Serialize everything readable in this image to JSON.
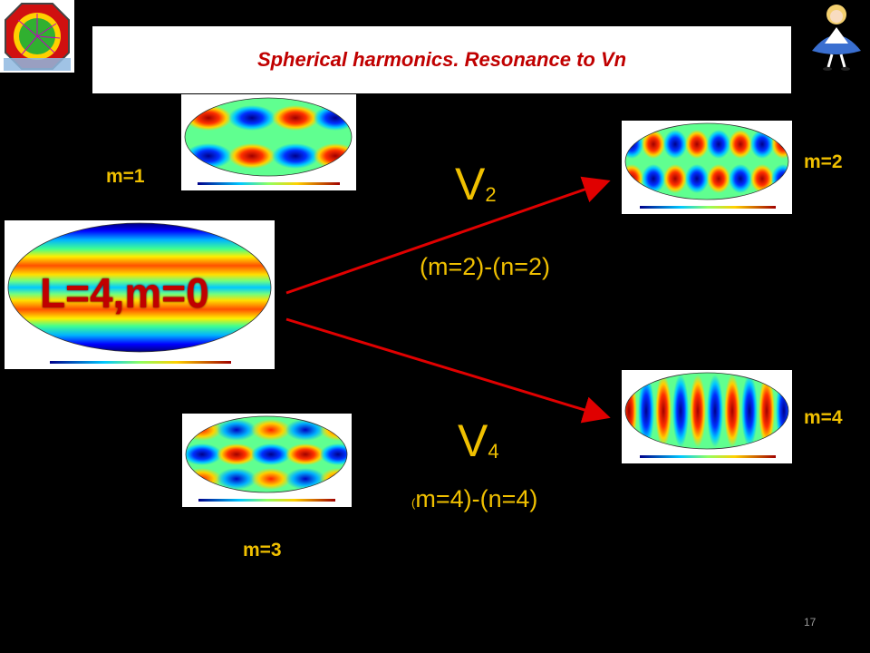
{
  "slide": {
    "title": "Spherical harmonics. Resonance  to Vn",
    "page_number": "17"
  },
  "central_map": {
    "label": "L=4,m=0",
    "scale_min": "-0.34",
    "scale_max": "+0.80"
  },
  "maps": {
    "m1": {
      "label": "m=1",
      "scale_min": "-0.66",
      "scale_max": "+0.66"
    },
    "m2": {
      "label": "m=2",
      "scale_min": "-6.25e-01",
      "scale_max": "+6.25e-01"
    },
    "m3": {
      "label": "m=3",
      "scale_min": "-6.45e-01",
      "scale_max": "+6.45e-01"
    },
    "m4": {
      "label": "m=4",
      "scale_min": "-6.45e-01",
      "scale_max": "+6.45e-01"
    }
  },
  "transitions": {
    "v2": {
      "symbol": "V",
      "subscript": "2",
      "relation": "(m=2)-(n=2)"
    },
    "v4": {
      "symbol": "V",
      "subscript": "4",
      "relation_open": "(",
      "relation": "m=4)-(n=4)"
    }
  },
  "colors": {
    "title": "#c00000",
    "labels": "#f0c000",
    "arrows": "#e00000",
    "background": "#000000"
  },
  "icons": [
    "detector-logo-icon",
    "alice-character-icon"
  ]
}
